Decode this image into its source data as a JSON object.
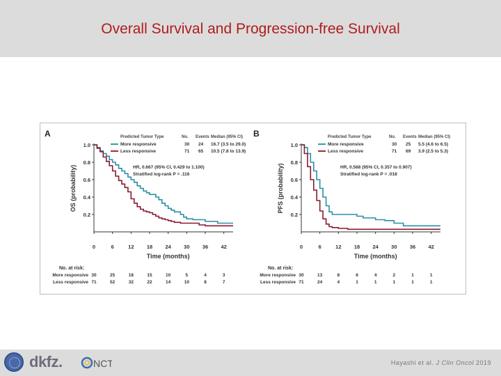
{
  "slide": {
    "title": "Overall Survival and Progression-free Survival",
    "citation_authors": "Hayashi et al.",
    "citation_journal": "J Clin Oncol",
    "citation_year": "2019",
    "logos": [
      {
        "name": "dkfz-logo",
        "text": "dkfz."
      },
      {
        "name": "nct-logo",
        "text": "NCT"
      }
    ]
  },
  "colors": {
    "header_bg": "#dcdcdc",
    "title": "#b01c1c",
    "more_responsive": "#2a8fa6",
    "less_responsive": "#8a1a2e"
  },
  "chart_data": [
    {
      "panel_label": "A",
      "type": "line",
      "step": true,
      "xlabel": "Time (months)",
      "ylabel": "OS (probability)",
      "xlim": [
        0,
        45
      ],
      "ylim": [
        0,
        1.0
      ],
      "xticks": [
        0,
        6,
        12,
        18,
        24,
        30,
        36,
        42
      ],
      "yticks": [
        0.2,
        0.4,
        0.6,
        0.8,
        1.0
      ],
      "legend_title": [
        "Predicted Tumor Type",
        "No.",
        "Events",
        "Median (95% CI)"
      ],
      "series": [
        {
          "name": "More responsive",
          "no": "30",
          "events": "24",
          "median": "16.7 (3.5 to 29.0)",
          "color": "#2a8fa6",
          "x": [
            0,
            1,
            2,
            3,
            4,
            5,
            6,
            7,
            8,
            9,
            10,
            11,
            12,
            13,
            14,
            15,
            16,
            17,
            18,
            19,
            20,
            21,
            22,
            23,
            24,
            25,
            26,
            27,
            28,
            29,
            30,
            32,
            34,
            36,
            38,
            40,
            42,
            45
          ],
          "y": [
            1.0,
            0.97,
            0.93,
            0.9,
            0.87,
            0.83,
            0.8,
            0.77,
            0.73,
            0.7,
            0.67,
            0.63,
            0.6,
            0.57,
            0.53,
            0.5,
            0.47,
            0.45,
            0.43,
            0.43,
            0.4,
            0.37,
            0.33,
            0.3,
            0.27,
            0.25,
            0.23,
            0.23,
            0.2,
            0.17,
            0.15,
            0.14,
            0.14,
            0.12,
            0.12,
            0.1,
            0.1,
            0.1
          ]
        },
        {
          "name": "Less responsive",
          "no": "71",
          "events": "65",
          "median": "10.5 (7.8 to 13.9)",
          "color": "#8a1a2e",
          "x": [
            0,
            1,
            2,
            3,
            4,
            5,
            6,
            7,
            8,
            9,
            10,
            11,
            12,
            13,
            14,
            15,
            16,
            17,
            18,
            19,
            20,
            21,
            22,
            23,
            24,
            25,
            26,
            28,
            30,
            32,
            34,
            36,
            38,
            40,
            42,
            45
          ],
          "y": [
            1.0,
            0.96,
            0.92,
            0.86,
            0.81,
            0.76,
            0.7,
            0.64,
            0.59,
            0.55,
            0.51,
            0.46,
            0.38,
            0.33,
            0.29,
            0.26,
            0.24,
            0.23,
            0.22,
            0.2,
            0.18,
            0.16,
            0.15,
            0.14,
            0.13,
            0.12,
            0.11,
            0.1,
            0.1,
            0.1,
            0.08,
            0.07,
            0.07,
            0.07,
            0.07,
            0.07
          ]
        }
      ],
      "annotation": [
        "HR, 0.667 (95% CI, 0.429 to 1.100)",
        "Stratified log-rank P = .116"
      ],
      "at_risk_title": "No. at risk:",
      "at_risk": [
        {
          "label": "More responsive",
          "values": [
            "30",
            "25",
            "18",
            "15",
            "10",
            "5",
            "4",
            "3"
          ]
        },
        {
          "label": "Less responsive",
          "values": [
            "71",
            "52",
            "32",
            "22",
            "14",
            "10",
            "8",
            "7"
          ]
        }
      ]
    },
    {
      "panel_label": "B",
      "type": "line",
      "step": true,
      "xlabel": "Time (months)",
      "ylabel": "PFS (probability)",
      "xlim": [
        0,
        45
      ],
      "ylim": [
        0,
        1.0
      ],
      "xticks": [
        0,
        6,
        12,
        18,
        24,
        30,
        36,
        42
      ],
      "yticks": [
        0.2,
        0.4,
        0.6,
        0.8,
        1.0
      ],
      "legend_title": [
        "Predicted Tumor Type",
        "No.",
        "Events",
        "Median (95% CI)"
      ],
      "series": [
        {
          "name": "More responsive",
          "no": "30",
          "events": "25",
          "median": "5.5 (4.6 to 6.5)",
          "color": "#2a8fa6",
          "x": [
            0,
            1,
            2,
            3,
            4,
            5,
            6,
            7,
            8,
            9,
            10,
            11,
            12,
            15,
            18,
            20,
            24,
            27,
            30,
            33,
            36,
            42,
            45
          ],
          "y": [
            1.0,
            0.97,
            0.9,
            0.8,
            0.7,
            0.6,
            0.5,
            0.4,
            0.3,
            0.23,
            0.2,
            0.2,
            0.2,
            0.2,
            0.18,
            0.16,
            0.14,
            0.13,
            0.1,
            0.07,
            0.07,
            0.07,
            0.07
          ]
        },
        {
          "name": "Less responsive",
          "no": "71",
          "events": "69",
          "median": "3.9 (2.5 to 5.3)",
          "color": "#8a1a2e",
          "x": [
            0,
            1,
            2,
            3,
            4,
            5,
            6,
            7,
            8,
            9,
            10,
            11,
            12,
            15,
            20,
            30,
            45
          ],
          "y": [
            1.0,
            0.9,
            0.75,
            0.6,
            0.48,
            0.36,
            0.24,
            0.15,
            0.09,
            0.06,
            0.05,
            0.05,
            0.04,
            0.03,
            0.03,
            0.03,
            0.03
          ]
        }
      ],
      "annotation": [
        "HR, 0.568 (95% CI, 0.357 to 0.907)",
        "Stratified log-rank P = .018"
      ],
      "at_risk_title": "No. at risk:",
      "at_risk": [
        {
          "label": "More responsive",
          "values": [
            "30",
            "13",
            "8",
            "6",
            "4",
            "2",
            "1",
            "1"
          ]
        },
        {
          "label": "Less responsive",
          "values": [
            "71",
            "24",
            "4",
            "1",
            "1",
            "1",
            "1",
            "1"
          ]
        }
      ]
    }
  ]
}
